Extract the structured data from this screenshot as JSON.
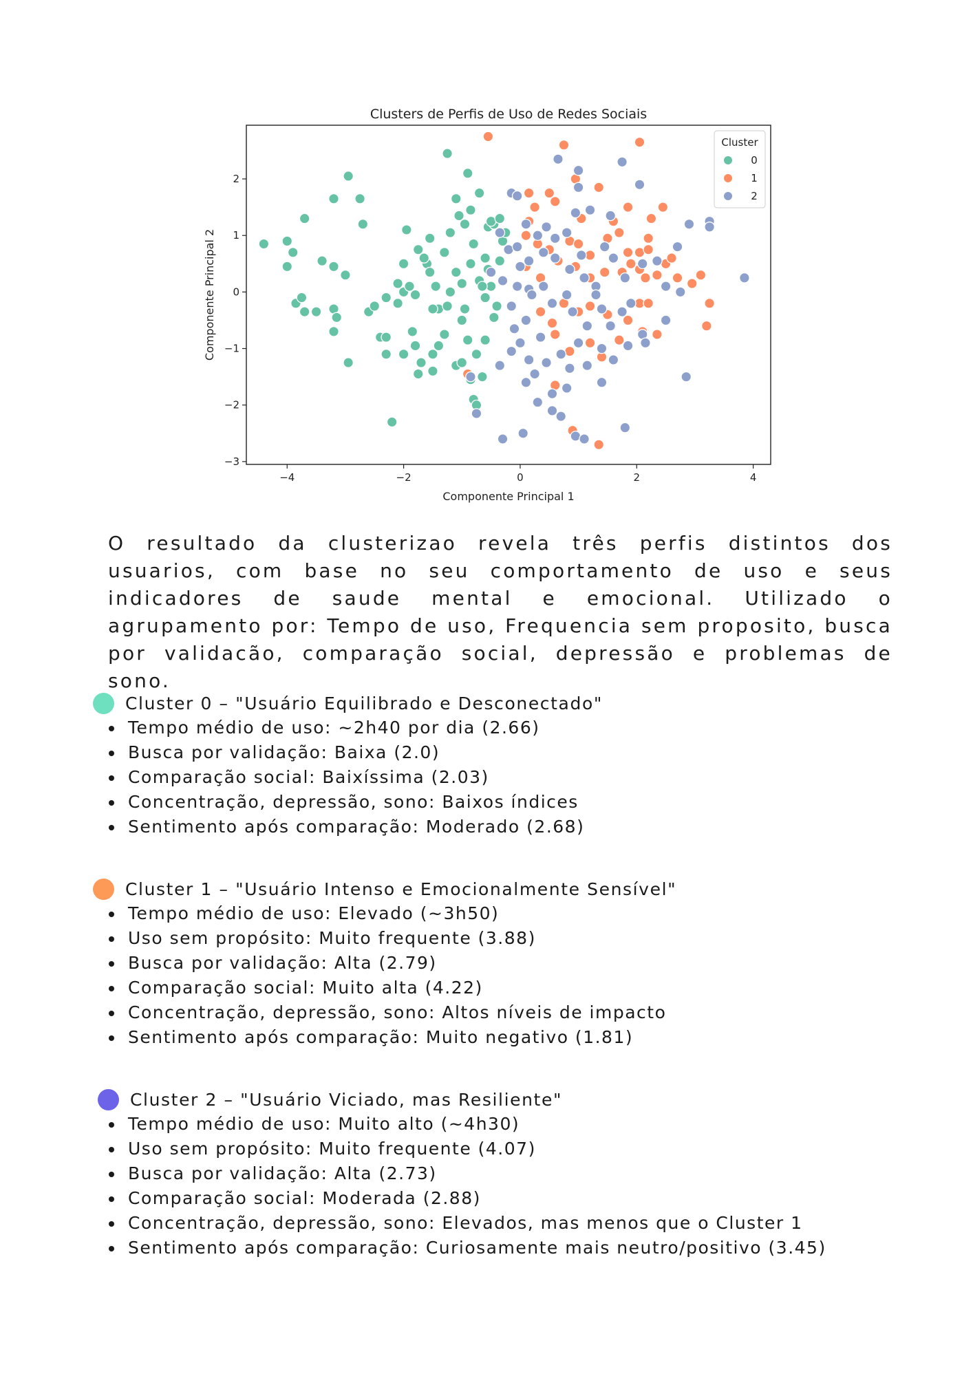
{
  "chart_data": {
    "type": "scatter",
    "title": "Clusters de Perfis de Uso de Redes Sociais",
    "xlabel": "Componente Principal 1",
    "ylabel": "Componente Principal 2",
    "xlim": [
      -4.7,
      4.3
    ],
    "ylim": [
      -3.05,
      2.95
    ],
    "xticks": [
      -4,
      -2,
      0,
      2,
      4
    ],
    "xtick_labels": [
      "−4",
      "−2",
      "0",
      "2",
      "4"
    ],
    "yticks": [
      -3,
      -2,
      -1,
      0,
      1,
      2
    ],
    "ytick_labels": [
      "−3",
      "−2",
      "−1",
      "0",
      "1",
      "2"
    ],
    "grid": false,
    "legend": {
      "title": "Cluster",
      "placement": "top-right"
    },
    "series": [
      {
        "name": "0",
        "color": "#66c2a5",
        "points": [
          [
            -4.4,
            0.85
          ],
          [
            -4.0,
            0.9
          ],
          [
            -3.9,
            0.7
          ],
          [
            -4.0,
            0.45
          ],
          [
            -3.7,
            1.3
          ],
          [
            -3.4,
            0.55
          ],
          [
            -3.2,
            0.45
          ],
          [
            -3.0,
            0.3
          ],
          [
            -2.95,
            2.05
          ],
          [
            -3.2,
            1.65
          ],
          [
            -2.75,
            1.65
          ],
          [
            -2.7,
            1.2
          ],
          [
            -3.85,
            -0.2
          ],
          [
            -3.75,
            -0.1
          ],
          [
            -3.7,
            -0.35
          ],
          [
            -3.5,
            -0.35
          ],
          [
            -3.2,
            -0.3
          ],
          [
            -3.15,
            -0.45
          ],
          [
            -3.2,
            -0.7
          ],
          [
            -2.95,
            -1.25
          ],
          [
            -2.6,
            -0.35
          ],
          [
            -2.5,
            -0.25
          ],
          [
            -2.4,
            -0.8
          ],
          [
            -2.3,
            -0.8
          ],
          [
            -2.3,
            -1.1
          ],
          [
            -2.0,
            -1.1
          ],
          [
            -2.2,
            -2.3
          ],
          [
            -2.3,
            -0.1
          ],
          [
            -2.1,
            -0.2
          ],
          [
            -2.0,
            0.0
          ],
          [
            -1.9,
            0.1
          ],
          [
            -1.8,
            -0.05
          ],
          [
            -1.85,
            -0.7
          ],
          [
            -1.8,
            -0.95
          ],
          [
            -1.7,
            -1.25
          ],
          [
            -1.75,
            -1.45
          ],
          [
            -1.5,
            -1.4
          ],
          [
            -1.5,
            -1.1
          ],
          [
            -1.4,
            -0.95
          ],
          [
            -1.3,
            -0.75
          ],
          [
            -1.1,
            -1.3
          ],
          [
            -1.0,
            -1.25
          ],
          [
            -0.9,
            -0.85
          ],
          [
            -0.85,
            -1.55
          ],
          [
            -0.75,
            -1.1
          ],
          [
            -0.65,
            -1.5
          ],
          [
            -0.6,
            -0.85
          ],
          [
            -0.8,
            -1.9
          ],
          [
            -0.75,
            -2.0
          ],
          [
            -2.0,
            0.5
          ],
          [
            -1.95,
            1.1
          ],
          [
            -1.75,
            0.75
          ],
          [
            -1.6,
            0.5
          ],
          [
            -1.55,
            0.35
          ],
          [
            -1.45,
            0.1
          ],
          [
            -1.4,
            -0.3
          ],
          [
            -1.25,
            -0.25
          ],
          [
            -1.2,
            0.0
          ],
          [
            -1.1,
            0.35
          ],
          [
            -1.0,
            0.15
          ],
          [
            -0.95,
            -0.3
          ],
          [
            -0.85,
            0.5
          ],
          [
            -0.8,
            0.85
          ],
          [
            -0.7,
            0.2
          ],
          [
            -0.6,
            -0.1
          ],
          [
            -0.55,
            0.4
          ],
          [
            -0.5,
            0.1
          ],
          [
            -0.4,
            -0.25
          ],
          [
            -0.35,
            0.55
          ],
          [
            -0.3,
            0.9
          ],
          [
            -1.3,
            0.7
          ],
          [
            -1.2,
            1.05
          ],
          [
            -1.05,
            1.35
          ],
          [
            -0.95,
            1.2
          ],
          [
            -0.9,
            2.1
          ],
          [
            -0.7,
            1.75
          ],
          [
            -0.55,
            1.15
          ],
          [
            -0.45,
            1.2
          ],
          [
            -1.25,
            2.45
          ],
          [
            -1.1,
            1.65
          ],
          [
            -0.85,
            1.45
          ],
          [
            -0.5,
            1.25
          ],
          [
            -0.35,
            1.3
          ],
          [
            -0.25,
            1.05
          ],
          [
            -1.55,
            0.95
          ],
          [
            -1.65,
            0.6
          ],
          [
            -2.1,
            0.15
          ],
          [
            -1.5,
            -0.3
          ],
          [
            -1.0,
            -0.5
          ],
          [
            -0.65,
            0.1
          ],
          [
            -0.45,
            -0.45
          ],
          [
            -0.6,
            0.6
          ]
        ]
      },
      {
        "name": "1",
        "color": "#fc8d62",
        "points": [
          [
            -0.55,
            2.75
          ],
          [
            0.75,
            2.6
          ],
          [
            0.95,
            2.0
          ],
          [
            2.05,
            2.65
          ],
          [
            1.35,
            1.85
          ],
          [
            0.15,
            1.75
          ],
          [
            0.5,
            1.75
          ],
          [
            0.6,
            1.6
          ],
          [
            0.25,
            1.5
          ],
          [
            0.15,
            1.25
          ],
          [
            1.05,
            1.3
          ],
          [
            1.6,
            1.25
          ],
          [
            1.85,
            1.5
          ],
          [
            2.25,
            1.3
          ],
          [
            2.45,
            1.5
          ],
          [
            0.1,
            1.0
          ],
          [
            0.3,
            0.85
          ],
          [
            0.5,
            0.75
          ],
          [
            0.65,
            0.55
          ],
          [
            0.85,
            0.9
          ],
          [
            1.0,
            0.85
          ],
          [
            1.2,
            0.65
          ],
          [
            1.5,
            0.95
          ],
          [
            1.7,
            1.05
          ],
          [
            1.85,
            0.7
          ],
          [
            2.05,
            0.7
          ],
          [
            2.2,
            0.95
          ],
          [
            2.2,
            0.75
          ],
          [
            2.5,
            0.5
          ],
          [
            2.6,
            0.6
          ],
          [
            2.7,
            0.25
          ],
          [
            0.95,
            0.45
          ],
          [
            1.2,
            0.25
          ],
          [
            1.45,
            0.35
          ],
          [
            1.75,
            0.35
          ],
          [
            1.9,
            0.5
          ],
          [
            2.05,
            0.4
          ],
          [
            2.15,
            0.25
          ],
          [
            2.35,
            0.3
          ],
          [
            2.95,
            0.15
          ],
          [
            3.1,
            0.3
          ],
          [
            3.25,
            -0.2
          ],
          [
            3.2,
            -0.6
          ],
          [
            0.35,
            -0.35
          ],
          [
            0.55,
            -0.55
          ],
          [
            0.75,
            -0.2
          ],
          [
            1.0,
            -0.35
          ],
          [
            1.2,
            -0.25
          ],
          [
            1.5,
            -0.4
          ],
          [
            1.85,
            -0.5
          ],
          [
            2.05,
            -0.2
          ],
          [
            2.2,
            -0.2
          ],
          [
            2.35,
            -0.75
          ],
          [
            0.6,
            -0.75
          ],
          [
            0.85,
            -1.05
          ],
          [
            1.2,
            -0.9
          ],
          [
            1.4,
            -1.15
          ],
          [
            0.6,
            -1.65
          ],
          [
            0.9,
            -2.45
          ],
          [
            1.35,
            -2.7
          ],
          [
            -0.9,
            -1.45
          ],
          [
            2.1,
            -0.7
          ],
          [
            1.7,
            -0.85
          ],
          [
            0.1,
            0.45
          ],
          [
            0.35,
            0.25
          ]
        ]
      },
      {
        "name": "2",
        "color": "#8da0cb",
        "points": [
          [
            -0.15,
            1.75
          ],
          [
            -0.05,
            1.7
          ],
          [
            0.1,
            1.2
          ],
          [
            0.3,
            1.0
          ],
          [
            0.6,
            0.95
          ],
          [
            0.8,
            1.05
          ],
          [
            0.65,
            2.35
          ],
          [
            1.0,
            2.15
          ],
          [
            1.0,
            1.85
          ],
          [
            1.55,
            1.35
          ],
          [
            1.75,
            2.3
          ],
          [
            2.05,
            1.9
          ],
          [
            1.2,
            1.45
          ],
          [
            0.95,
            1.4
          ],
          [
            0.45,
            1.15
          ],
          [
            -0.35,
            1.05
          ],
          [
            -0.2,
            0.75
          ],
          [
            0.0,
            0.45
          ],
          [
            0.15,
            0.55
          ],
          [
            0.4,
            0.7
          ],
          [
            0.6,
            0.6
          ],
          [
            0.85,
            0.4
          ],
          [
            1.1,
            0.25
          ],
          [
            1.3,
            0.1
          ],
          [
            1.45,
            0.8
          ],
          [
            1.6,
            0.6
          ],
          [
            1.8,
            0.25
          ],
          [
            2.1,
            0.5
          ],
          [
            2.35,
            0.55
          ],
          [
            2.5,
            0.1
          ],
          [
            2.7,
            0.8
          ],
          [
            3.25,
            1.25
          ],
          [
            3.25,
            1.15
          ],
          [
            3.85,
            0.25
          ],
          [
            -0.5,
            0.35
          ],
          [
            -0.3,
            0.2
          ],
          [
            -0.05,
            0.1
          ],
          [
            0.15,
            0.05
          ],
          [
            0.4,
            0.1
          ],
          [
            0.55,
            -0.2
          ],
          [
            0.8,
            -0.05
          ],
          [
            0.9,
            -0.35
          ],
          [
            1.15,
            -0.6
          ],
          [
            1.4,
            -0.3
          ],
          [
            1.55,
            -0.6
          ],
          [
            1.75,
            -0.35
          ],
          [
            1.9,
            -0.2
          ],
          [
            2.1,
            -0.75
          ],
          [
            2.5,
            -0.5
          ],
          [
            2.75,
            0.0
          ],
          [
            -0.85,
            -1.5
          ],
          [
            -0.75,
            -2.15
          ],
          [
            -0.35,
            -1.3
          ],
          [
            -0.15,
            -1.05
          ],
          [
            0.0,
            -0.9
          ],
          [
            0.15,
            -1.2
          ],
          [
            0.25,
            -1.45
          ],
          [
            0.45,
            -1.25
          ],
          [
            0.7,
            -1.1
          ],
          [
            0.85,
            -1.35
          ],
          [
            1.0,
            -0.9
          ],
          [
            1.15,
            -1.3
          ],
          [
            1.4,
            -1.0
          ],
          [
            1.6,
            -1.2
          ],
          [
            1.85,
            -0.95
          ],
          [
            2.15,
            -0.9
          ],
          [
            0.1,
            -1.6
          ],
          [
            0.3,
            -1.95
          ],
          [
            0.55,
            -2.1
          ],
          [
            0.7,
            -2.2
          ],
          [
            0.95,
            -2.55
          ],
          [
            1.1,
            -2.6
          ],
          [
            -0.3,
            -2.6
          ],
          [
            0.05,
            -2.5
          ],
          [
            0.55,
            -1.8
          ],
          [
            0.8,
            -1.7
          ],
          [
            1.4,
            -1.6
          ],
          [
            1.8,
            -2.4
          ],
          [
            2.85,
            -1.5
          ],
          [
            -0.15,
            -0.25
          ],
          [
            0.1,
            -0.5
          ],
          [
            0.35,
            -0.8
          ],
          [
            -0.1,
            -0.65
          ],
          [
            1.3,
            -0.05
          ],
          [
            1.05,
            0.65
          ],
          [
            0.2,
            -0.05
          ],
          [
            -0.05,
            0.8
          ],
          [
            2.9,
            1.2
          ]
        ]
      }
    ]
  },
  "intro": {
    "text": "O resultado da clusterizao revela três perfis distintos dos usuarios, com base no seu comportamento de uso e seus indicadores de saude mental e emocional. Utilizado o agrupamento por: Tempo de uso, Frequencia sem proposito, busca por validacão, comparação social, depressão e problemas de sono."
  },
  "clusters": [
    {
      "color": "#6ee0bf",
      "title": "Cluster 0 – \"Usuário Equilibrado e Desconectado\"",
      "items": [
        "Tempo médio de uso: ~2h40 por dia (2.66)",
        "Busca por validação: Baixa (2.0)",
        "Comparação social: Baixíssima (2.03)",
        "Concentração, depressão, sono: Baixos índices",
        "Sentimento após comparação: Moderado (2.68)"
      ]
    },
    {
      "color": "#fd9a57",
      "title": "Cluster 1 – \"Usuário Intenso e Emocionalmente Sensível\"",
      "items": [
        "Tempo médio de uso: Elevado (~3h50)",
        "Uso sem propósito: Muito frequente (3.88)",
        "Busca por validação: Alta (2.79)",
        "Comparação social: Muito alta (4.22)",
        "Concentração, depressão, sono: Altos níveis de impacto",
        "Sentimento após comparação: Muito negativo (1.81)"
      ]
    },
    {
      "color": "#6c63e8",
      "title": "Cluster 2 – \"Usuário Viciado, mas Resiliente\"",
      "items": [
        "Tempo médio de uso: Muito alto (~4h30)",
        "Uso sem propósito: Muito frequente (4.07)",
        "Busca por validação: Alta (2.73)",
        "Comparação social: Moderada (2.88)",
        "Concentração, depressão, sono: Elevados, mas menos que o Cluster 1",
        "Sentimento após comparação: Curiosamente mais neutro/positivo (3.45)"
      ]
    }
  ]
}
